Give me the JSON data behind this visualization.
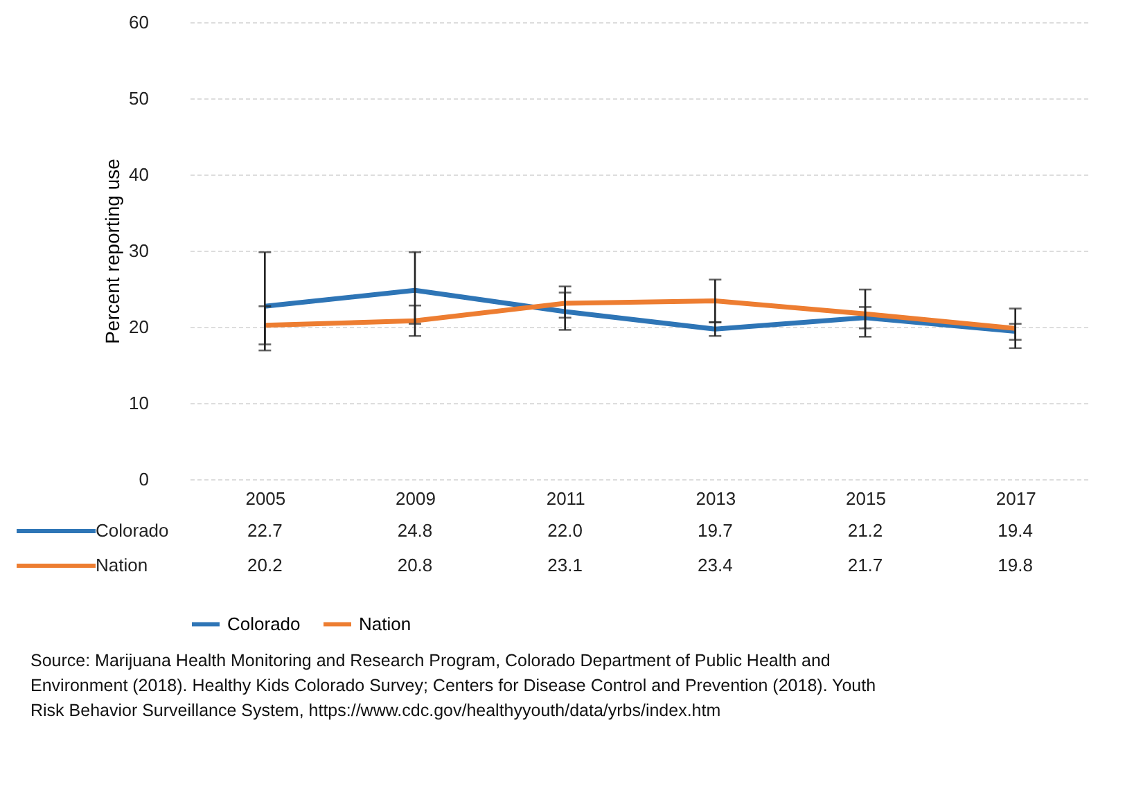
{
  "chart_data": {
    "type": "line",
    "ylabel": "Percent reporting use",
    "categories": [
      "2005",
      "2009",
      "2011",
      "2013",
      "2015",
      "2017"
    ],
    "series": [
      {
        "name": "Colorado",
        "color": "#2e75b6",
        "values": [
          22.7,
          24.8,
          22.0,
          19.7,
          21.2,
          19.4
        ],
        "value_labels": [
          "22.7",
          "24.8",
          "22.0",
          "19.7",
          "21.2",
          "19.4"
        ],
        "errors": [
          [
            16.9,
            29.8
          ],
          [
            20.4,
            29.8
          ],
          [
            19.6,
            24.5
          ],
          [
            18.8,
            20.6
          ],
          [
            19.8,
            22.6
          ],
          [
            18.3,
            20.4
          ]
        ]
      },
      {
        "name": "Nation",
        "color": "#ed7d31",
        "values": [
          20.2,
          20.8,
          23.1,
          23.4,
          21.7,
          19.8
        ],
        "value_labels": [
          "20.2",
          "20.8",
          "23.1",
          "23.4",
          "21.7",
          "19.8"
        ],
        "errors": [
          [
            17.7,
            22.7
          ],
          [
            18.8,
            22.8
          ],
          [
            21.2,
            25.3
          ],
          [
            20.6,
            26.2
          ],
          [
            18.7,
            24.9
          ],
          [
            17.2,
            22.4
          ]
        ]
      }
    ],
    "ylim": [
      0,
      60
    ],
    "yticks": [
      0,
      10,
      20,
      30,
      40,
      50,
      60
    ],
    "grid": "y",
    "legend": "bottom",
    "line_style": "solid",
    "annotations": [
      "Source: Marijuana Health Monitoring and Research Program, Colorado Department of Public Health and Environment (2018). Healthy Kids Colorado Survey; Centers for Disease Control and Prevention (2018). Youth Risk Behavior Surveillance System, https://www.cdc.gov/healthyyouth/data/yrbs/index.htm"
    ]
  }
}
